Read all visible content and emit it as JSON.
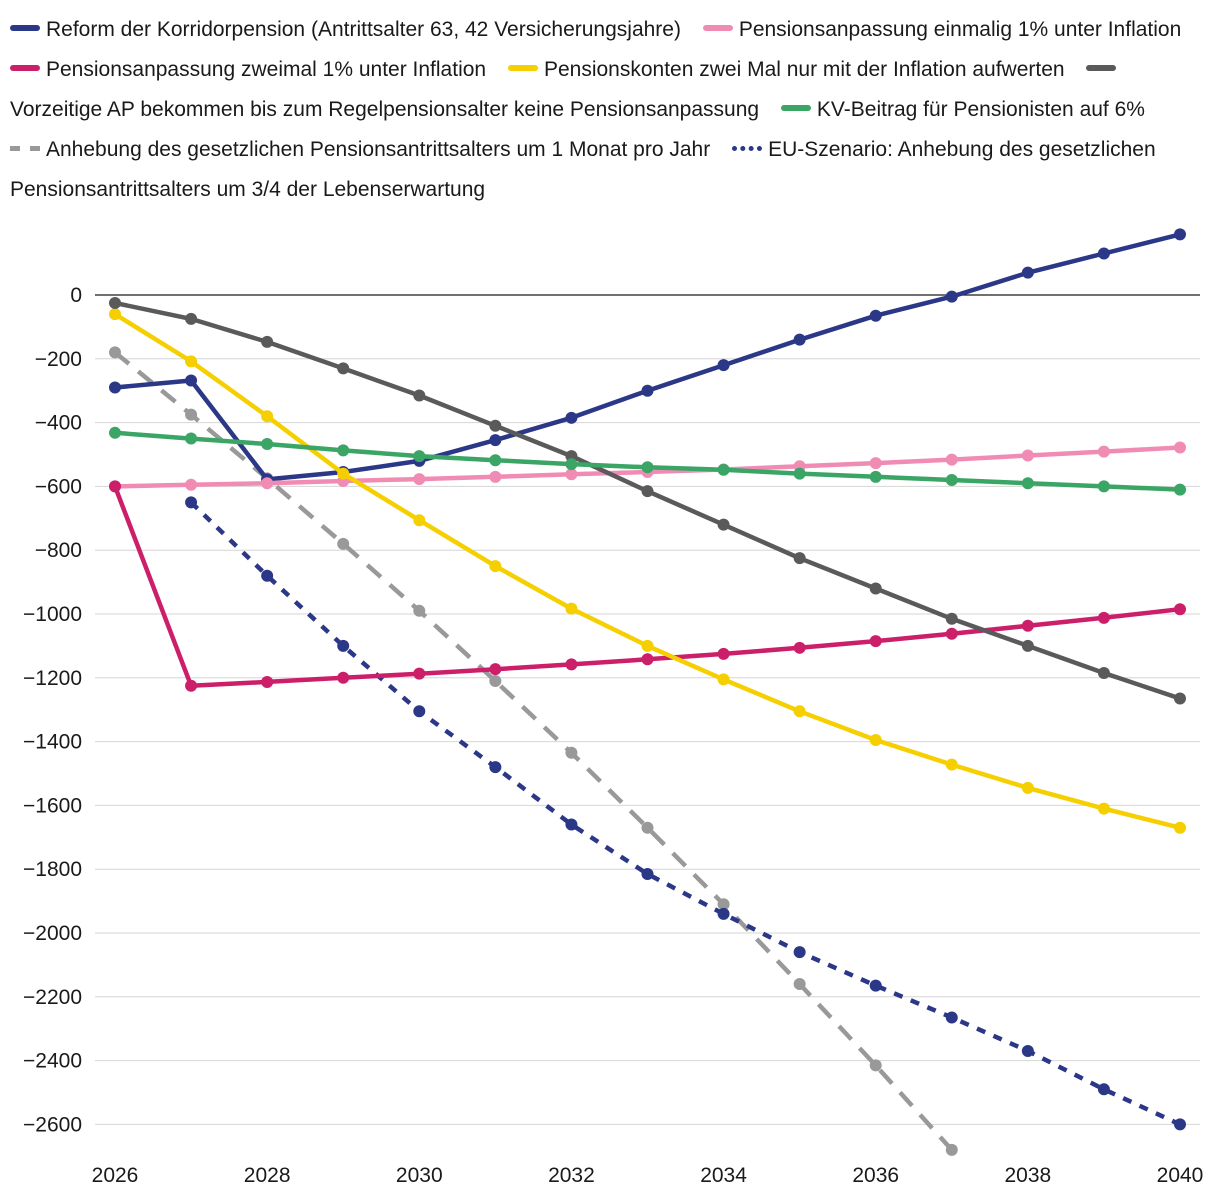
{
  "chart_data": {
    "type": "line",
    "title": "",
    "xlabel": "",
    "ylabel": "",
    "x": [
      2026,
      2027,
      2028,
      2029,
      2030,
      2031,
      2032,
      2033,
      2034,
      2035,
      2036,
      2037,
      2038,
      2039,
      2040
    ],
    "xticks": [
      "2026",
      "2028",
      "2030",
      "2032",
      "2034",
      "2036",
      "2038",
      "2040"
    ],
    "xtick_values": [
      2026,
      2028,
      2030,
      2032,
      2034,
      2036,
      2038,
      2040
    ],
    "yticks": [
      "0",
      "−200",
      "−400",
      "−600",
      "−800",
      "−1000",
      "−1200",
      "−1400",
      "−1600",
      "−1800",
      "−2000",
      "−2200",
      "−2400",
      "−2600"
    ],
    "ytick_values": [
      0,
      -200,
      -400,
      -600,
      -800,
      -1000,
      -1200,
      -1400,
      -1600,
      -1800,
      -2000,
      -2200,
      -2400,
      -2600
    ],
    "xlim": [
      2026,
      2040
    ],
    "ylim": [
      -2700,
      200
    ],
    "grid": true,
    "legend_position": "top",
    "series": [
      {
        "name": "Reform der Korridorpension (Antrittsalter 63, 42 Versicherungsjahre)",
        "color": "#2b3787",
        "style": "solid",
        "x": [
          2026,
          2027,
          2028,
          2029,
          2030,
          2031,
          2032,
          2033,
          2034,
          2035,
          2036,
          2037,
          2038,
          2039,
          2040
        ],
        "values": [
          -290,
          -268,
          -578,
          -555,
          -520,
          -455,
          -385,
          -300,
          -220,
          -140,
          -65,
          -5,
          70,
          130,
          190
        ]
      },
      {
        "name": "Pensionsanpassung einmalig 1% unter Inflation",
        "color": "#f08cb4",
        "style": "solid",
        "x": [
          2026,
          2027,
          2028,
          2029,
          2030,
          2031,
          2032,
          2033,
          2034,
          2035,
          2036,
          2037,
          2038,
          2039,
          2040
        ],
        "values": [
          -600,
          -595,
          -590,
          -583,
          -577,
          -570,
          -562,
          -555,
          -547,
          -537,
          -527,
          -516,
          -503,
          -491,
          -478
        ]
      },
      {
        "name": "Pensionsanpassung zweimal 1% unter Inflation",
        "color": "#cc1f6a",
        "style": "solid",
        "x": [
          2026,
          2027,
          2028,
          2029,
          2030,
          2031,
          2032,
          2033,
          2034,
          2035,
          2036,
          2037,
          2038,
          2039,
          2040
        ],
        "values": [
          -600,
          -1225,
          -1213,
          -1200,
          -1187,
          -1173,
          -1158,
          -1142,
          -1125,
          -1106,
          -1085,
          -1062,
          -1037,
          -1012,
          -985
        ]
      },
      {
        "name": "Pensionskonten zwei Mal nur mit der Inflation aufwerten",
        "color": "#f5cf00",
        "style": "solid",
        "x": [
          2026,
          2027,
          2028,
          2029,
          2030,
          2031,
          2032,
          2033,
          2034,
          2035,
          2036,
          2037,
          2038,
          2039,
          2040
        ],
        "values": [
          -60,
          -208,
          -380,
          -560,
          -706,
          -850,
          -983,
          -1100,
          -1205,
          -1305,
          -1395,
          -1472,
          -1545,
          -1610,
          -1670
        ]
      },
      {
        "name": "Vorzeitige AP bekommen bis zum Regelpensionsalter keine Pensionsanpassung",
        "color": "#5a5a5a",
        "style": "solid",
        "x": [
          2026,
          2027,
          2028,
          2029,
          2030,
          2031,
          2032,
          2033,
          2034,
          2035,
          2036,
          2037,
          2038,
          2039,
          2040
        ],
        "values": [
          -25,
          -75,
          -147,
          -230,
          -315,
          -410,
          -505,
          -615,
          -720,
          -825,
          -920,
          -1015,
          -1100,
          -1185,
          -1265
        ]
      },
      {
        "name": "KV-Beitrag für Pensionisten auf 6%",
        "color": "#3aa565",
        "style": "solid",
        "x": [
          2026,
          2027,
          2028,
          2029,
          2030,
          2031,
          2032,
          2033,
          2034,
          2035,
          2036,
          2037,
          2038,
          2039,
          2040
        ],
        "values": [
          -432,
          -450,
          -467,
          -487,
          -505,
          -518,
          -530,
          -540,
          -548,
          -560,
          -570,
          -580,
          -590,
          -600,
          -610
        ]
      },
      {
        "name": "Anhebung des gesetzlichen Pensionsantrittsalters um 1 Monat pro Jahr",
        "color": "#999999",
        "style": "dashed",
        "x": [
          2026,
          2027,
          2028,
          2029,
          2030,
          2031,
          2032,
          2033,
          2034,
          2035,
          2036,
          2037
        ],
        "values": [
          -180,
          -375,
          -575,
          -780,
          -990,
          -1210,
          -1435,
          -1670,
          -1910,
          -2160,
          -2415,
          -2680
        ]
      },
      {
        "name": "EU-Szenario: Anhebung des gesetzlichen Pensionsantrittsalters um 3/4 der Lebenserwartung",
        "color": "#2b3787",
        "style": "dotted",
        "x": [
          2027,
          2028,
          2029,
          2030,
          2031,
          2032,
          2033,
          2034,
          2035,
          2036,
          2037,
          2038,
          2039,
          2040
        ],
        "values": [
          -650,
          -880,
          -1100,
          -1305,
          -1480,
          -1660,
          -1815,
          -1940,
          -2060,
          -2165,
          -2265,
          -2370,
          -2490,
          -2600
        ]
      }
    ]
  }
}
